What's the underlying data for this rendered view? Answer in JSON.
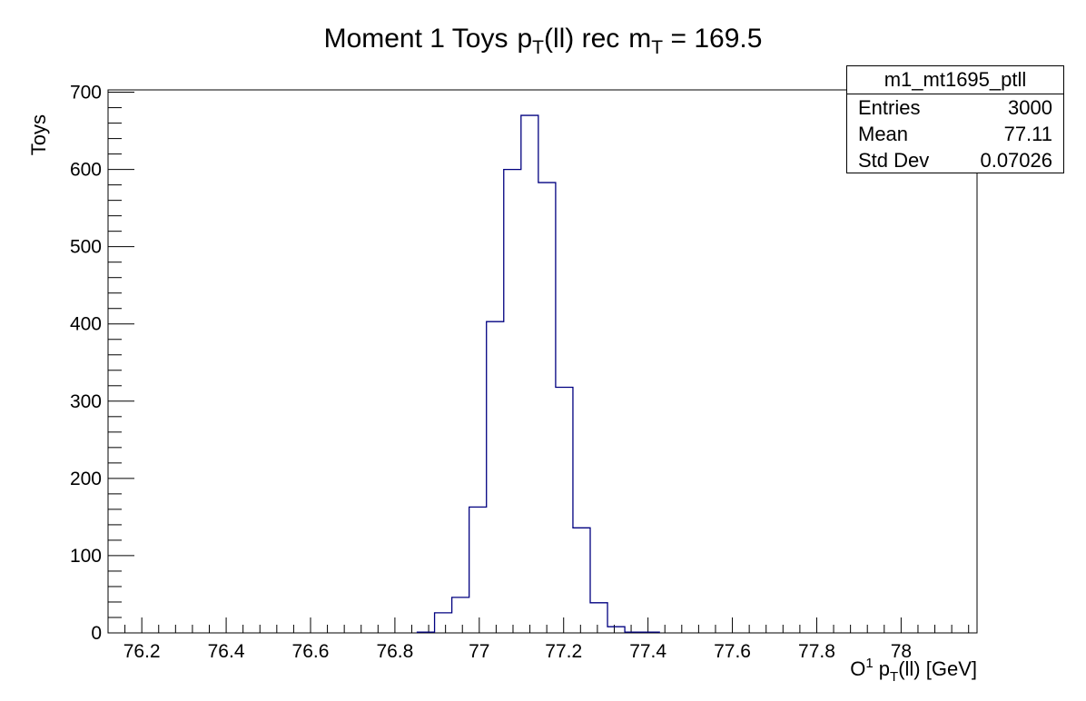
{
  "title": {
    "moment": "Moment 1 Toys",
    "obs_p": "p",
    "obs_sub": "T",
    "obs_rest": "(ll) rec",
    "m": "m",
    "m_sub": "T",
    "m_value": "= 169.5"
  },
  "axis": {
    "ylabel": "Toys",
    "xlabel_main": "O",
    "xlabel_sup": "1",
    "xlabel_p": " p",
    "xlabel_sub": "T",
    "xlabel_rest": "(ll) [GeV]"
  },
  "stats": {
    "name": "m1_mt1695_ptll",
    "entries_label": "Entries",
    "entries_value": "3000",
    "mean_label": "Mean",
    "mean_value": "77.11",
    "std_label": "Std Dev",
    "std_value": "0.07026"
  },
  "colors": {
    "histogram_line": "#000080",
    "frame": "#000000"
  },
  "chart_data": {
    "type": "bar",
    "style": "step-histogram",
    "xlim": [
      76.12,
      78.18
    ],
    "ylim": [
      0,
      703
    ],
    "x_ticks": [
      76.2,
      76.4,
      76.6,
      76.8,
      77,
      77.2,
      77.4,
      77.6,
      77.8,
      78
    ],
    "x_tick_labels": [
      "76.2",
      "76.4",
      "76.6",
      "76.8",
      "77",
      "77.2",
      "77.4",
      "77.6",
      "77.8",
      "78"
    ],
    "y_ticks": [
      0,
      100,
      200,
      300,
      400,
      500,
      600,
      700
    ],
    "y_tick_labels": [
      "0",
      "100",
      "200",
      "300",
      "400",
      "500",
      "600",
      "700"
    ],
    "bin_edges": [
      76.853,
      76.894,
      76.935,
      76.976,
      77.017,
      77.058,
      77.099,
      77.14,
      77.181,
      77.222,
      77.263,
      77.304,
      77.345,
      77.386,
      77.427
    ],
    "counts": [
      1,
      26,
      46,
      163,
      403,
      600,
      670,
      583,
      318,
      136,
      39,
      8,
      1,
      1
    ],
    "grid": false,
    "legend": "stats-box top-right"
  }
}
